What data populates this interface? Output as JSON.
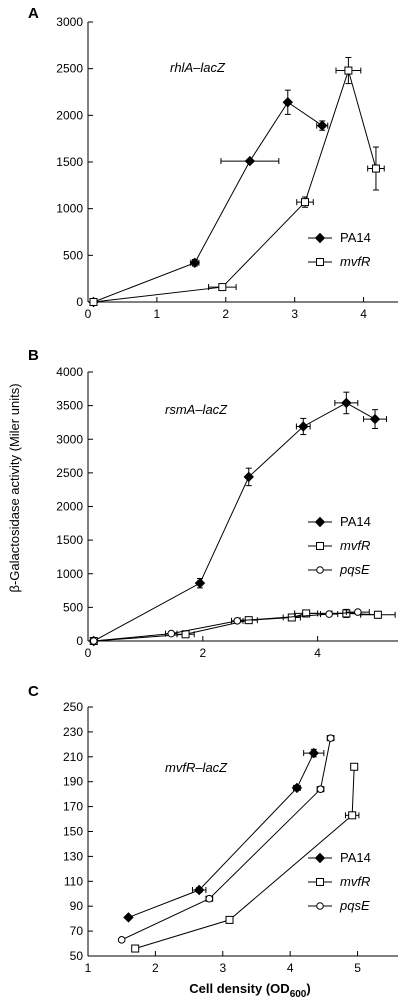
{
  "ylabel": "β-Galactosidase activity (Miler units)",
  "xlabel": "Cell density (OD",
  "xlabel_sub": "600",
  "xlabel_close": ")",
  "chart_data": [
    {
      "type": "line",
      "panel": "A",
      "annotation": "rhlA–lacZ",
      "xlim": [
        0,
        4.5
      ],
      "ylim": [
        0,
        3000
      ],
      "xticks": [
        0,
        1,
        2,
        3,
        4
      ],
      "yticks": [
        0,
        500,
        1000,
        1500,
        2000,
        2500,
        3000
      ],
      "legend_position": "right",
      "series": [
        {
          "name": "PA14",
          "italic": false,
          "marker": "diamond",
          "x": [
            0.08,
            1.55,
            2.35,
            2.9,
            3.4
          ],
          "y": [
            0,
            420,
            1510,
            2140,
            1890
          ],
          "xerr": [
            0,
            0.06,
            0.42,
            0,
            0.08
          ],
          "yerr": [
            0,
            35,
            0,
            130,
            50
          ]
        },
        {
          "name": "mvfR",
          "italic": true,
          "marker": "square",
          "x": [
            0.08,
            1.95,
            3.15,
            3.78,
            4.18
          ],
          "y": [
            0,
            160,
            1070,
            2480,
            1430
          ],
          "xerr": [
            0,
            0.2,
            0.12,
            0.18,
            0.12
          ],
          "yerr": [
            0,
            0,
            55,
            140,
            230
          ]
        }
      ]
    },
    {
      "type": "line",
      "panel": "B",
      "annotation": "rsmA–lacZ",
      "xlim": [
        0,
        5.4
      ],
      "ylim": [
        0,
        4000
      ],
      "xticks": [
        0,
        2,
        4
      ],
      "yticks": [
        0,
        500,
        1000,
        1500,
        2000,
        2500,
        3000,
        3500,
        4000
      ],
      "legend_position": "right",
      "series": [
        {
          "name": "PA14",
          "italic": false,
          "marker": "diamond",
          "x": [
            0.1,
            1.95,
            2.8,
            3.75,
            4.5,
            5.0
          ],
          "y": [
            0,
            860,
            2440,
            3190,
            3540,
            3300
          ],
          "xerr": [
            0,
            0,
            0,
            0.12,
            0.2,
            0.2
          ],
          "yerr": [
            0,
            70,
            130,
            120,
            160,
            140
          ]
        },
        {
          "name": "mvfR",
          "italic": true,
          "marker": "square",
          "x": [
            0.1,
            1.7,
            2.8,
            3.55,
            3.8,
            4.5,
            5.05
          ],
          "y": [
            0,
            100,
            310,
            350,
            410,
            410,
            390
          ],
          "xerr": [
            0,
            0.15,
            0.15,
            0.15,
            0.2,
            0.25,
            0.3
          ],
          "yerr": [
            0,
            0,
            0,
            0,
            50,
            60,
            50
          ]
        },
        {
          "name": "pqsE",
          "italic": true,
          "marker": "circle",
          "x": [
            0.1,
            1.45,
            2.6,
            4.2,
            4.7
          ],
          "y": [
            0,
            110,
            300,
            400,
            430
          ],
          "xerr": [
            0,
            0.1,
            0.1,
            0.15,
            0.2
          ],
          "yerr": [
            0,
            0,
            0,
            0,
            0
          ]
        }
      ]
    },
    {
      "type": "line",
      "panel": "C",
      "annotation": "mvfR–lacZ",
      "xlim": [
        1,
        5.6
      ],
      "ylim": [
        50,
        250
      ],
      "xticks": [
        1,
        2,
        3,
        4,
        5
      ],
      "yticks": [
        50,
        70,
        90,
        110,
        130,
        150,
        170,
        190,
        210,
        230,
        250
      ],
      "legend_position": "right",
      "series": [
        {
          "name": "PA14",
          "italic": false,
          "marker": "diamond",
          "x": [
            1.6,
            2.65,
            4.1,
            4.35
          ],
          "y": [
            81,
            103,
            185,
            213
          ],
          "xerr": [
            0,
            0.1,
            0.05,
            0.15
          ],
          "yerr": [
            0,
            2,
            2,
            3
          ]
        },
        {
          "name": "mvfR",
          "italic": true,
          "marker": "square",
          "x": [
            1.7,
            3.1,
            4.92,
            4.95
          ],
          "y": [
            56,
            79,
            163,
            202
          ],
          "xerr": [
            0,
            0.05,
            0.1,
            0.05
          ],
          "yerr": [
            0,
            2,
            2,
            2
          ]
        },
        {
          "name": "pqsE",
          "italic": true,
          "marker": "circle",
          "x": [
            1.5,
            2.8,
            4.45,
            4.6
          ],
          "y": [
            63,
            96,
            184,
            225
          ],
          "xerr": [
            0,
            0.05,
            0.05,
            0.05
          ],
          "yerr": [
            0,
            2,
            2,
            2
          ]
        }
      ]
    }
  ]
}
